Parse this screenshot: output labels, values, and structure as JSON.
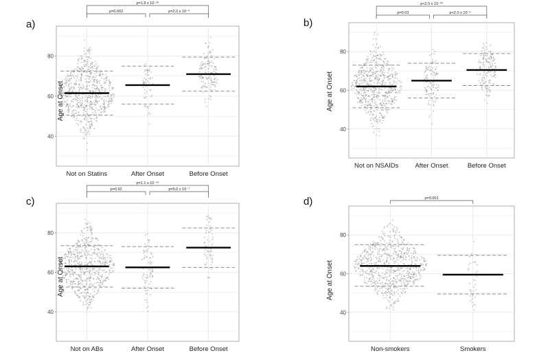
{
  "chart_data": [
    {
      "panel": "a)",
      "type": "scatter",
      "subtype": "beeswarm",
      "ylabel": "Age at Onset",
      "ylim": [
        25,
        95
      ],
      "yticks": [
        40,
        60,
        80
      ],
      "ytick_labels": [
        "40",
        "60",
        "80"
      ],
      "categories": [
        "Not on Statins",
        "After Onset",
        "Before Onset"
      ],
      "groups": [
        {
          "name": "Not on Statins",
          "mean": 61.5,
          "sd_low": 50.5,
          "sd_high": 72.5,
          "min": 27,
          "max": 89,
          "n": 700
        },
        {
          "name": "After Onset",
          "mean": 65.5,
          "sd_low": 56,
          "sd_high": 75,
          "min": 34,
          "max": 81,
          "n": 60
        },
        {
          "name": "Before Onset",
          "mean": 71,
          "sd_low": 62.5,
          "sd_high": 79.5,
          "min": 43,
          "max": 93,
          "n": 150
        }
      ],
      "comparisons": [
        {
          "from": 0,
          "to": 1,
          "label": "p=0.002",
          "level": 0
        },
        {
          "from": 1,
          "to": 2,
          "label": "p=2.0 x 10⁻⁴",
          "level": 0
        },
        {
          "from": 0,
          "to": 2,
          "label": "p=1.9 x 10⁻¹⁶",
          "level": 1
        }
      ]
    },
    {
      "panel": "b)",
      "type": "scatter",
      "subtype": "beeswarm",
      "ylabel": "Age at Onset",
      "ylim": [
        25,
        95
      ],
      "yticks": [
        40,
        60,
        80
      ],
      "ytick_labels": [
        "40",
        "60",
        "80"
      ],
      "categories": [
        "Not on NSAIDs",
        "After Onset",
        "Before Onset"
      ],
      "groups": [
        {
          "name": "Not on NSAIDs",
          "mean": 62,
          "sd_low": 51,
          "sd_high": 73,
          "min": 29,
          "max": 93,
          "n": 650
        },
        {
          "name": "After Onset",
          "mean": 65,
          "sd_low": 56,
          "sd_high": 74,
          "min": 40,
          "max": 82,
          "n": 120
        },
        {
          "name": "Before Onset",
          "mean": 70.5,
          "sd_low": 62.5,
          "sd_high": 79,
          "min": 51,
          "max": 87,
          "n": 170
        }
      ],
      "comparisons": [
        {
          "from": 0,
          "to": 1,
          "label": "p=0.03",
          "level": 0
        },
        {
          "from": 1,
          "to": 2,
          "label": "p<2.0 x 10⁻⁶",
          "level": 0
        },
        {
          "from": 0,
          "to": 2,
          "label": "p<2.5 x 10⁻²³",
          "level": 1
        }
      ]
    },
    {
      "panel": "c)",
      "type": "scatter",
      "subtype": "beeswarm",
      "ylabel": "Age at Onset",
      "ylim": [
        25,
        95
      ],
      "yticks": [
        40,
        60,
        80
      ],
      "ytick_labels": [
        "40",
        "60",
        "80"
      ],
      "categories": [
        "Not on ABs",
        "After Onset",
        "Before Onset"
      ],
      "groups": [
        {
          "name": "Not on ABs",
          "mean": 63,
          "sd_low": 52.5,
          "sd_high": 73.5,
          "min": 27,
          "max": 87,
          "n": 650
        },
        {
          "name": "After Onset",
          "mean": 62.5,
          "sd_low": 52,
          "sd_high": 73,
          "min": 33,
          "max": 80,
          "n": 80
        },
        {
          "name": "Before Onset",
          "mean": 72.5,
          "sd_low": 62.5,
          "sd_high": 82.5,
          "min": 55,
          "max": 92,
          "n": 60
        }
      ],
      "comparisons": [
        {
          "from": 0,
          "to": 1,
          "label": "p=0.92",
          "level": 0
        },
        {
          "from": 1,
          "to": 2,
          "label": "p=5.0 x 10⁻⁷",
          "level": 0
        },
        {
          "from": 0,
          "to": 2,
          "label": "p=1.1 x 10⁻¹⁴",
          "level": 1
        }
      ]
    },
    {
      "panel": "d)",
      "type": "scatter",
      "subtype": "beeswarm",
      "ylabel": "Age at Onset",
      "ylim": [
        25,
        95
      ],
      "yticks": [
        40,
        60,
        80
      ],
      "ytick_labels": [
        "40",
        "60",
        "80"
      ],
      "categories": [
        "Non-smokers",
        "Smokers"
      ],
      "groups": [
        {
          "name": "Non-smokers",
          "mean": 64,
          "sd_low": 53.5,
          "sd_high": 75,
          "min": 27,
          "max": 92,
          "n": 750
        },
        {
          "name": "Smokers",
          "mean": 59.5,
          "sd_low": 49.5,
          "sd_high": 69.5,
          "min": 33,
          "max": 81,
          "n": 40
        }
      ],
      "comparisons": [
        {
          "from": 0,
          "to": 1,
          "label": "p=0.001",
          "level": 0
        }
      ]
    }
  ],
  "style": {
    "mean_color": "#000000",
    "sd_color": "#8a8a8a",
    "point_color": "#8c8c8c",
    "grid_color": "#e4e4e4",
    "frame_color": "#9a9a9a"
  }
}
